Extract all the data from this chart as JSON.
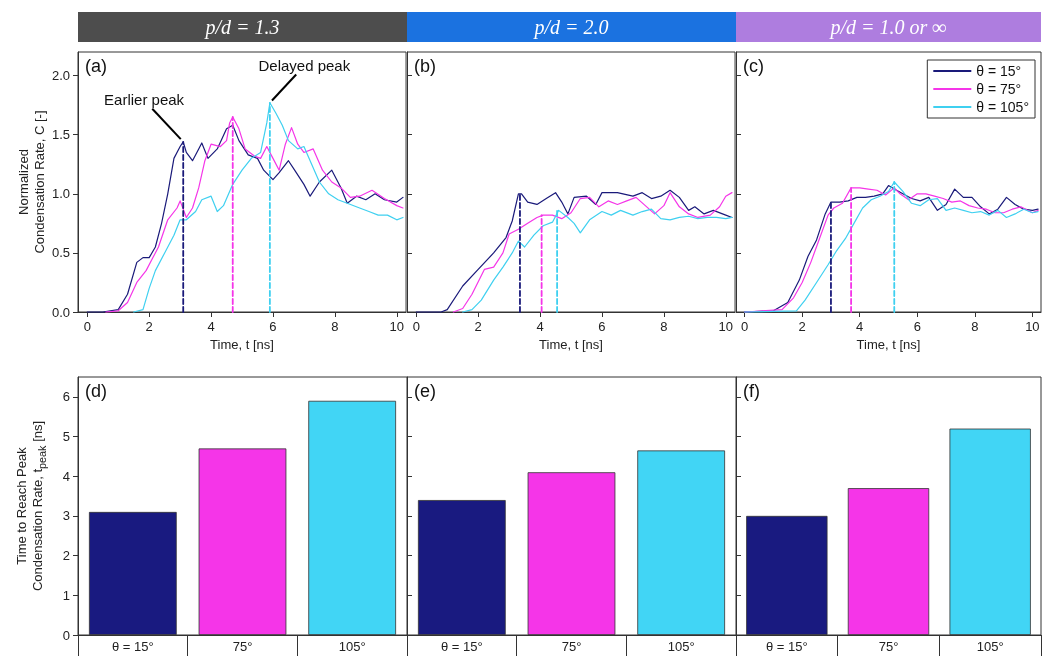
{
  "chart_data": [
    {
      "type": "line",
      "title": "p/d = 1.3",
      "xlabel": "Time, t [ns]",
      "ylabel": "Normalized Condensation Rate, C [-]",
      "xlim": [
        -0.3,
        10.3
      ],
      "xticks": [
        0,
        2,
        4,
        6,
        8,
        10
      ],
      "ylim": [
        0,
        2.2
      ],
      "yticks": [
        {
          "value": 0,
          "label": "0.0"
        },
        {
          "value": 0.5,
          "label": "0.5"
        },
        {
          "value": 1,
          "label": "1.0"
        },
        {
          "value": 1.5,
          "label": "1.5"
        },
        {
          "value": 2,
          "label": "2.0"
        }
      ],
      "grid": false,
      "legend": false,
      "marker": "none",
      "annotations": [
        "(a)",
        {
          "text": "Earlier peak",
          "x": 3.1,
          "y": 1.44
        },
        {
          "text": "Delayed peak",
          "x": 5.9,
          "y": 1.77
        }
      ],
      "series": [
        {
          "color": "#1a1a7a",
          "x": [
            0,
            0.5,
            1.0,
            1.3,
            1.6,
            1.8,
            2.0,
            2.2,
            2.4,
            2.6,
            2.8,
            3.0,
            3.1,
            3.2,
            3.4,
            3.6,
            3.7,
            3.9,
            4.2,
            4.5,
            4.7,
            4.9,
            5.2,
            5.5,
            5.7,
            6.0,
            6.2,
            6.5,
            6.7,
            7.0,
            7.2,
            7.5,
            7.9,
            8.2,
            8.4,
            8.7,
            9.0,
            9.3,
            9.6,
            10.0,
            10.2
          ],
          "values": [
            0,
            0,
            0.02,
            0.15,
            0.42,
            0.46,
            0.46,
            0.55,
            0.75,
            1.0,
            1.3,
            1.4,
            1.44,
            1.35,
            1.28,
            1.38,
            1.43,
            1.3,
            1.38,
            1.55,
            1.58,
            1.45,
            1.33,
            1.3,
            1.2,
            1.12,
            1.18,
            1.28,
            1.2,
            1.08,
            0.98,
            1.1,
            1.2,
            1.05,
            0.92,
            0.98,
            0.95,
            1.0,
            0.95,
            0.93,
            0.97
          ]
        },
        {
          "color": "#f535e8",
          "x": [
            0.6,
            1.0,
            1.3,
            1.6,
            1.9,
            2.1,
            2.3,
            2.6,
            2.9,
            3.0,
            3.2,
            3.4,
            3.6,
            3.8,
            4.0,
            4.3,
            4.5,
            4.6,
            4.7,
            4.9,
            5.1,
            5.4,
            5.6,
            5.8,
            6.0,
            6.2,
            6.4,
            6.6,
            6.8,
            7.0,
            7.3,
            7.6,
            7.9,
            8.2,
            8.5,
            8.8,
            9.2,
            9.6,
            10.0,
            10.2
          ],
          "values": [
            0,
            0.01,
            0.08,
            0.25,
            0.35,
            0.45,
            0.55,
            0.78,
            0.88,
            0.94,
            0.8,
            0.88,
            1.05,
            1.28,
            1.42,
            1.4,
            1.45,
            1.6,
            1.65,
            1.55,
            1.38,
            1.32,
            1.3,
            1.4,
            1.3,
            1.2,
            1.42,
            1.56,
            1.42,
            1.35,
            1.38,
            1.2,
            1.1,
            1.05,
            0.97,
            0.98,
            1.03,
            0.96,
            0.9,
            0.88
          ]
        },
        {
          "color": "#3fd0f0",
          "x": [
            1.5,
            1.8,
            2.0,
            2.2,
            2.5,
            2.8,
            3.0,
            3.2,
            3.5,
            3.7,
            4.0,
            4.2,
            4.4,
            4.7,
            5.0,
            5.3,
            5.6,
            5.8,
            5.9,
            6.1,
            6.3,
            6.5,
            6.8,
            7.0,
            7.2,
            7.5,
            7.8,
            8.1,
            8.4,
            8.8,
            9.1,
            9.4,
            9.7,
            10.0,
            10.2
          ],
          "values": [
            0,
            0.02,
            0.2,
            0.35,
            0.5,
            0.65,
            0.78,
            0.78,
            0.85,
            0.95,
            0.98,
            0.85,
            0.9,
            1.08,
            1.2,
            1.3,
            1.35,
            1.6,
            1.77,
            1.68,
            1.58,
            1.45,
            1.38,
            1.4,
            1.28,
            1.1,
            1.0,
            0.95,
            0.92,
            0.88,
            0.85,
            0.82,
            0.82,
            0.78,
            0.8
          ]
        },
        {
          "color": "#1a1a7a",
          "line_style": "dashed",
          "x": [
            3.1,
            3.1
          ],
          "values": [
            0,
            1.44
          ]
        },
        {
          "color": "#f535e8",
          "line_style": "dashed",
          "x": [
            4.7,
            4.7
          ],
          "values": [
            0,
            1.65
          ]
        },
        {
          "color": "#3fd0f0",
          "line_style": "dashed",
          "x": [
            5.9,
            5.9
          ],
          "values": [
            0,
            1.77
          ]
        }
      ]
    },
    {
      "type": "line",
      "title": "p/d = 2.0",
      "xlabel": "Time, t [ns]",
      "xlim": [
        -0.3,
        10.3
      ],
      "xticks": [
        0,
        2,
        4,
        6,
        8,
        10
      ],
      "ylim": [
        0,
        2.2
      ],
      "yticks": [
        0,
        0.5,
        1,
        1.5,
        2
      ],
      "tick_labels": "x",
      "grid": false,
      "legend": false,
      "marker": "none",
      "annotations": [
        "(b)"
      ],
      "series": [
        {
          "color": "#1a1a7a",
          "x": [
            0,
            0.8,
            1.0,
            1.5,
            2.0,
            2.5,
            2.9,
            3.1,
            3.3,
            3.4,
            3.6,
            3.9,
            4.2,
            4.5,
            4.7,
            4.9,
            5.1,
            5.5,
            5.8,
            6.0,
            6.5,
            7.0,
            7.3,
            7.6,
            7.9,
            8.2,
            8.5,
            8.8,
            9.0,
            9.3,
            9.6,
            10.0,
            10.2
          ],
          "values": [
            0,
            0,
            0.02,
            0.22,
            0.36,
            0.5,
            0.63,
            0.77,
            1.0,
            1.0,
            0.93,
            0.91,
            0.96,
            1.01,
            0.93,
            0.83,
            0.97,
            0.98,
            0.91,
            1.01,
            1.01,
            0.98,
            1.01,
            0.96,
            0.98,
            1.03,
            0.97,
            0.86,
            0.89,
            0.83,
            0.86,
            0.82,
            0.8
          ]
        },
        {
          "color": "#f535e8",
          "x": [
            1.2,
            1.5,
            1.8,
            2.2,
            2.5,
            2.8,
            3.0,
            3.3,
            3.6,
            3.9,
            4.1,
            4.4,
            4.7,
            5.0,
            5.3,
            5.6,
            5.9,
            6.2,
            6.5,
            6.8,
            7.1,
            7.4,
            7.7,
            8.0,
            8.2,
            8.5,
            8.8,
            9.1,
            9.5,
            9.8,
            10.0,
            10.2
          ],
          "values": [
            0,
            0.03,
            0.15,
            0.36,
            0.38,
            0.5,
            0.66,
            0.7,
            0.75,
            0.8,
            0.82,
            0.82,
            0.79,
            0.84,
            0.96,
            0.97,
            0.89,
            0.94,
            0.91,
            0.94,
            0.97,
            0.9,
            0.83,
            0.9,
            1.01,
            0.89,
            0.83,
            0.8,
            0.82,
            0.89,
            0.98,
            1.01
          ]
        },
        {
          "color": "#3fd0f0",
          "x": [
            1.5,
            1.8,
            2.1,
            2.5,
            2.8,
            3.1,
            3.3,
            3.5,
            3.8,
            4.1,
            4.4,
            4.6,
            4.9,
            5.1,
            5.3,
            5.6,
            6.0,
            6.3,
            6.6,
            7.0,
            7.3,
            7.6,
            7.9,
            8.2,
            8.5,
            8.8,
            9.1,
            9.4,
            9.7,
            10.0,
            10.2
          ],
          "values": [
            0,
            0.02,
            0.1,
            0.27,
            0.38,
            0.5,
            0.6,
            0.55,
            0.65,
            0.73,
            0.76,
            0.86,
            0.8,
            0.75,
            0.67,
            0.78,
            0.85,
            0.82,
            0.86,
            0.82,
            0.85,
            0.87,
            0.79,
            0.78,
            0.8,
            0.81,
            0.79,
            0.8,
            0.8,
            0.79,
            0.8
          ]
        },
        {
          "color": "#1a1a7a",
          "line_style": "dashed",
          "x": [
            3.35,
            3.35
          ],
          "values": [
            0,
            1.0
          ]
        },
        {
          "color": "#f535e8",
          "line_style": "dashed",
          "x": [
            4.05,
            4.05
          ],
          "values": [
            0,
            0.82
          ]
        },
        {
          "color": "#3fd0f0",
          "line_style": "dashed",
          "x": [
            4.55,
            4.55
          ],
          "values": [
            0,
            0.86
          ]
        }
      ]
    },
    {
      "type": "line",
      "title": "p/d = 1.0 or ∞",
      "xlabel": "Time, t [ns]",
      "xlim": [
        -0.3,
        10.3
      ],
      "xticks": [
        0,
        2,
        4,
        6,
        8,
        10
      ],
      "ylim": [
        0,
        2.2
      ],
      "yticks": [
        0,
        0.5,
        1,
        1.5,
        2
      ],
      "tick_labels": "x",
      "grid": false,
      "legend": "top right",
      "marker": "none",
      "annotations": [
        "(c)"
      ],
      "series": [
        {
          "name": "θ = 15°",
          "color": "#1a1a7a",
          "x": [
            0,
            1.0,
            1.5,
            1.9,
            2.2,
            2.5,
            2.8,
            3.0,
            3.3,
            3.6,
            3.9,
            4.2,
            4.5,
            4.8,
            5.0,
            5.2,
            5.5,
            5.8,
            6.1,
            6.4,
            6.7,
            7.0,
            7.3,
            7.6,
            7.9,
            8.2,
            8.5,
            8.8,
            9.1,
            9.4,
            9.7,
            10.0,
            10.2
          ],
          "values": [
            0,
            0.01,
            0.08,
            0.27,
            0.47,
            0.61,
            0.83,
            0.93,
            0.93,
            0.94,
            0.97,
            0.97,
            0.98,
            1.0,
            1.07,
            1.04,
            1.0,
            0.96,
            0.94,
            0.97,
            0.86,
            0.91,
            1.04,
            0.97,
            0.97,
            0.89,
            0.83,
            0.87,
            0.97,
            0.91,
            0.87,
            0.86,
            0.87
          ]
        },
        {
          "name": "θ = 75°",
          "color": "#f535e8",
          "x": [
            0,
            1.3,
            1.7,
            2.0,
            2.3,
            2.6,
            2.9,
            3.1,
            3.4,
            3.7,
            4.0,
            4.3,
            4.6,
            4.9,
            5.2,
            5.4,
            5.7,
            6.0,
            6.3,
            6.6,
            6.9,
            7.2,
            7.5,
            7.8,
            8.1,
            8.4,
            8.7,
            9.0,
            9.3,
            9.6,
            10.0,
            10.2
          ],
          "values": [
            0,
            0.02,
            0.12,
            0.25,
            0.42,
            0.62,
            0.82,
            0.88,
            0.92,
            1.05,
            1.05,
            1.04,
            1.03,
            0.99,
            1.05,
            1.0,
            0.95,
            1.0,
            1.0,
            0.98,
            0.96,
            0.93,
            0.94,
            0.9,
            0.88,
            0.87,
            0.84,
            0.84,
            0.87,
            0.89,
            0.84,
            0.86
          ]
        },
        {
          "name": "θ = 105°",
          "color": "#3fd0f0",
          "x": [
            0,
            1.8,
            2.1,
            2.5,
            2.9,
            3.2,
            3.5,
            3.8,
            4.1,
            4.4,
            4.7,
            5.0,
            5.2,
            5.5,
            5.8,
            6.1,
            6.4,
            6.7,
            7.0,
            7.3,
            7.6,
            7.9,
            8.2,
            8.5,
            8.8,
            9.1,
            9.4,
            9.7,
            10.0,
            10.2
          ],
          "values": [
            0,
            0.01,
            0.1,
            0.25,
            0.4,
            0.52,
            0.62,
            0.75,
            0.88,
            0.95,
            0.98,
            1.02,
            1.1,
            1.02,
            0.92,
            0.9,
            0.95,
            0.96,
            0.86,
            0.88,
            0.86,
            0.84,
            0.85,
            0.82,
            0.86,
            0.8,
            0.83,
            0.87,
            0.84,
            0.85
          ]
        },
        {
          "color": "#1a1a7a",
          "line_style": "dashed",
          "x": [
            3.0,
            3.0
          ],
          "values": [
            0,
            0.93
          ]
        },
        {
          "color": "#f535e8",
          "line_style": "dashed",
          "x": [
            3.7,
            3.7
          ],
          "values": [
            0,
            1.05
          ]
        },
        {
          "color": "#3fd0f0",
          "line_style": "dashed",
          "x": [
            5.2,
            5.2
          ],
          "values": [
            0,
            1.1
          ]
        }
      ]
    },
    {
      "type": "bar",
      "ylabel": "Time to Reach Peak Condensation Rate, t$_{peak}$ [ns]",
      "categories": [
        "θ = 15°",
        "75°",
        "105°"
      ],
      "values": [
        3.1,
        4.7,
        5.9
      ],
      "colors": [
        "#191a80",
        "#f535e8",
        "#41d5f5"
      ],
      "ylim": [
        0,
        6.5
      ],
      "yticks": [
        0,
        1,
        2,
        3,
        4,
        5,
        6
      ],
      "grid": false,
      "legend": false,
      "annotations": [
        "(d)"
      ]
    },
    {
      "type": "bar",
      "categories": [
        "θ = 15°",
        "75°",
        "105°"
      ],
      "values": [
        3.4,
        4.1,
        4.65
      ],
      "colors": [
        "#191a80",
        "#f535e8",
        "#41d5f5"
      ],
      "ylim": [
        0,
        6.5
      ],
      "yticks": [
        0,
        1,
        2,
        3,
        4,
        5,
        6
      ],
      "tick_labels": "x",
      "grid": false,
      "legend": false,
      "annotations": [
        "(e)"
      ]
    },
    {
      "type": "bar",
      "categories": [
        "θ = 15°",
        "75°",
        "105°"
      ],
      "values": [
        3.0,
        3.7,
        5.2
      ],
      "colors": [
        "#191a80",
        "#f535e8",
        "#41d5f5"
      ],
      "ylim": [
        0,
        6.5
      ],
      "yticks": [
        0,
        1,
        2,
        3,
        4,
        5,
        6
      ],
      "tick_labels": "x",
      "grid": false,
      "legend": false,
      "annotations": [
        "(f)"
      ]
    }
  ]
}
